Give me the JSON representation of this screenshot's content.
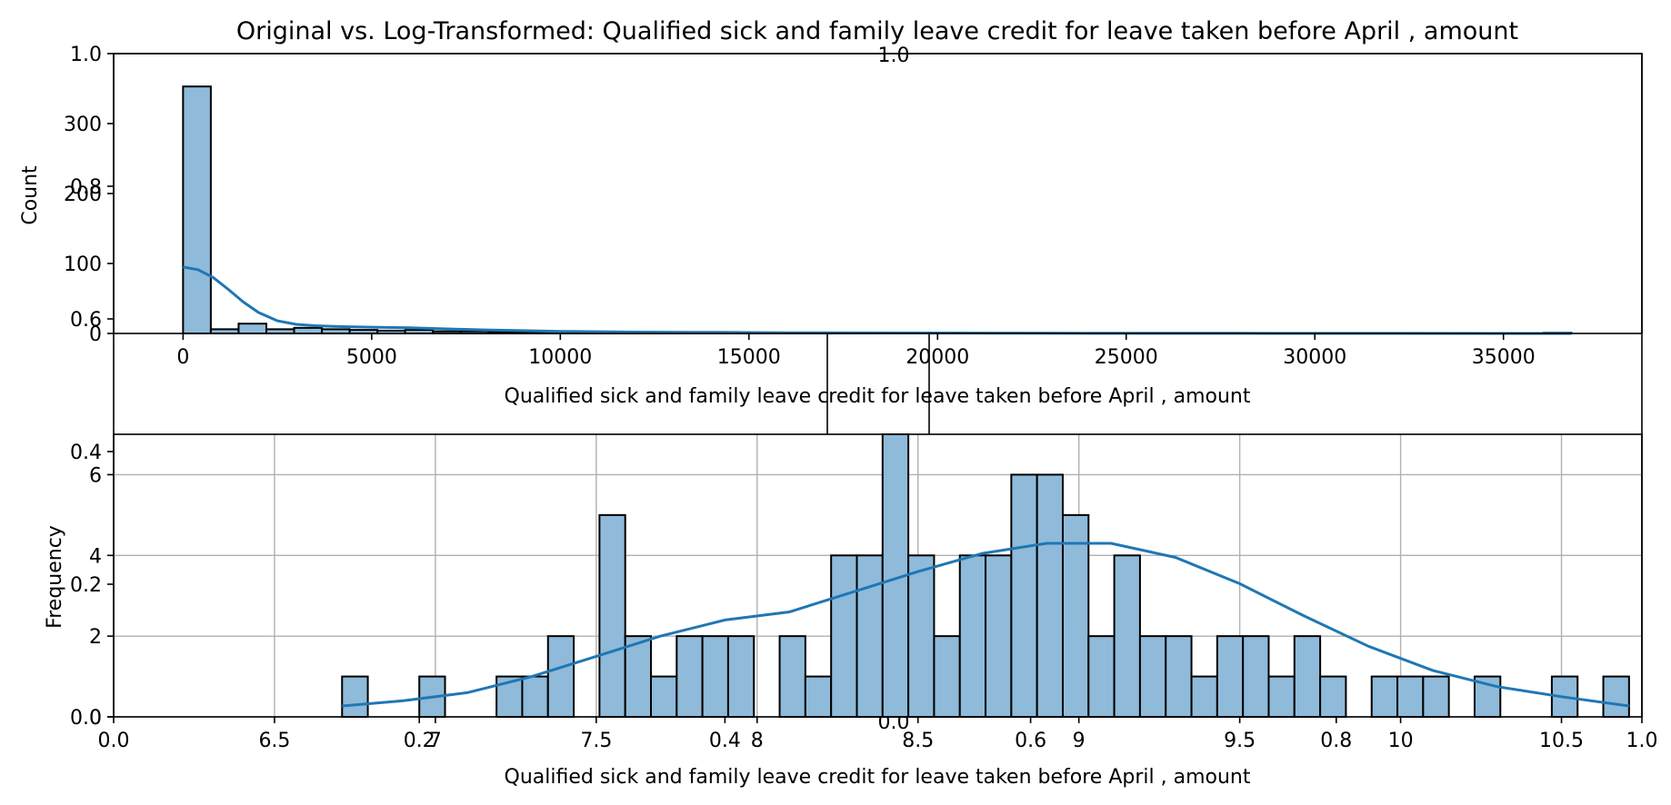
{
  "title": "Original vs. Log-Transformed: Qualified sick and family leave credit for leave taken before April ,  amount",
  "overlay_axis": {
    "top_label": "1.0",
    "y_ticks": [
      "0.0",
      "0.2",
      "0.4",
      "0.6",
      "0.8",
      "1.0"
    ],
    "x_ticks": [
      "0.0",
      "0.2",
      "0.4",
      "0.6",
      "0.8",
      "1.0"
    ],
    "mid_label": "0.0"
  },
  "chart_data": [
    {
      "type": "bar",
      "subtype": "histogram-with-kde",
      "xlabel": "Qualified sick and family leave credit for leave taken before April ,  amount",
      "ylabel": "Count",
      "xlim": [
        -1840,
        38670
      ],
      "ylim": [
        0,
        400
      ],
      "x_ticks": [
        0,
        5000,
        10000,
        15000,
        20000,
        25000,
        30000,
        35000
      ],
      "y_ticks": [
        0,
        100,
        200,
        300
      ],
      "bin_width": 736,
      "bin_start": 0,
      "counts": [
        353,
        6,
        14,
        6,
        8,
        6,
        5,
        4,
        5,
        3,
        3,
        2,
        2,
        2,
        2,
        1,
        2,
        1,
        1,
        2,
        1,
        1,
        1,
        1,
        1,
        0,
        0,
        1,
        0,
        0,
        0,
        0,
        0,
        0,
        0,
        0,
        0,
        0,
        0,
        0,
        0,
        0,
        0,
        0,
        0,
        0,
        0,
        0,
        0,
        1
      ],
      "kde": {
        "x": [
          0,
          400,
          800,
          1200,
          1600,
          2000,
          2500,
          3000,
          3500,
          4000,
          5000,
          6000,
          7000,
          8000,
          9000,
          10000,
          12000,
          14000,
          16000,
          18000,
          20000,
          24000,
          28000,
          32000,
          36800
        ],
        "y": [
          95,
          91,
          80,
          63,
          45,
          30,
          18,
          13,
          11,
          10,
          9,
          8,
          6.5,
          5,
          4,
          3,
          2,
          1.5,
          1,
          0.8,
          0.6,
          0.4,
          0.2,
          0.1,
          0.05
        ]
      },
      "color": "#1f77b4",
      "grid": false
    },
    {
      "type": "bar",
      "subtype": "histogram-with-kde",
      "xlabel": "Qualified sick and family leave credit for leave taken before April ,  amount",
      "ylabel": "Frequency",
      "xlim": [
        6.0,
        10.75
      ],
      "ylim": [
        0,
        7.0
      ],
      "x_ticks": [
        6.5,
        7.0,
        7.5,
        8.0,
        8.5,
        9.0,
        9.5,
        10.0,
        10.5
      ],
      "y_ticks": [
        0,
        2,
        4,
        6
      ],
      "bin_width": 0.08,
      "bin_start": 6.71,
      "counts": [
        1,
        0,
        0,
        1,
        0,
        0,
        1,
        1,
        2,
        0,
        5,
        2,
        1,
        2,
        2,
        2,
        0,
        2,
        1,
        4,
        4,
        7,
        4,
        2,
        4,
        4,
        6,
        6,
        5,
        2,
        4,
        2,
        2,
        1,
        2,
        2,
        1,
        2,
        1,
        0,
        1,
        1,
        1,
        0,
        1,
        0,
        0,
        1,
        0,
        1
      ],
      "kde": {
        "x": [
          6.71,
          6.9,
          7.1,
          7.3,
          7.5,
          7.7,
          7.9,
          8.1,
          8.3,
          8.5,
          8.7,
          8.9,
          9.1,
          9.3,
          9.5,
          9.7,
          9.9,
          10.1,
          10.3,
          10.5,
          10.71
        ],
        "y": [
          0.27,
          0.4,
          0.6,
          1.0,
          1.5,
          2.0,
          2.4,
          2.6,
          3.1,
          3.6,
          4.05,
          4.3,
          4.3,
          3.95,
          3.3,
          2.5,
          1.75,
          1.15,
          0.75,
          0.5,
          0.27
        ]
      },
      "color": "#1f77b4",
      "grid": true
    }
  ]
}
